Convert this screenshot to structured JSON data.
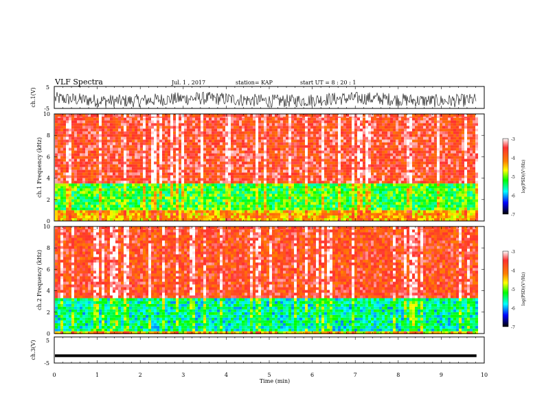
{
  "header": {
    "title": "VLF Spectra",
    "date": "Jul. 1 , 2017",
    "station": "station= KAP",
    "start": "start UT = 8 : 20 : 1"
  },
  "chart_data": [
    {
      "type": "line",
      "id": "ch1-waveform",
      "ylabel": "ch.1(V)",
      "ylim": [
        -5,
        5
      ],
      "yticks": [
        "5",
        "-5"
      ],
      "xlim": [
        0,
        10
      ],
      "description_of_signal": "noisy waveform roughly within -4 to 4 V, centered near -1 V"
    },
    {
      "type": "heatmap",
      "id": "ch1-spectrogram",
      "ylabel": "ch.1 Frequency (kHz)",
      "ylim": [
        0,
        10
      ],
      "yticks": [
        "0",
        "2",
        "4",
        "6",
        "8",
        "10"
      ],
      "xlim": [
        0,
        10
      ],
      "colorbar": {
        "label": "log(PSD)(V²/Hz)",
        "ticks": [
          "-3",
          "-4",
          "-5",
          "-6",
          "-7"
        ],
        "range": [
          -7,
          -3
        ]
      },
      "bands": [
        {
          "f_low": 3.5,
          "f_high": 10,
          "level": -3.6
        },
        {
          "f_low": 1.0,
          "f_high": 3.5,
          "level": -5.2
        },
        {
          "f_low": 0.0,
          "f_high": 1.0,
          "level": -4.4
        }
      ]
    },
    {
      "type": "heatmap",
      "id": "ch2-spectrogram",
      "ylabel": "ch.2 Frequency (kHz)",
      "ylim": [
        0,
        10
      ],
      "yticks": [
        "0",
        "2",
        "4",
        "6",
        "8",
        "10"
      ],
      "xlim": [
        0,
        10
      ],
      "colorbar": {
        "label": "log(PSD)(V²/Hz)",
        "ticks": [
          "-3",
          "-4",
          "-5",
          "-6",
          "-7"
        ],
        "range": [
          -7,
          -3
        ]
      },
      "bands": [
        {
          "f_low": 3.3,
          "f_high": 10,
          "level": -3.7
        },
        {
          "f_low": 0.2,
          "f_high": 3.3,
          "level": -5.6
        },
        {
          "f_low": 0.0,
          "f_high": 0.2,
          "level": -4.5
        }
      ]
    },
    {
      "type": "line",
      "id": "ch3-waveform",
      "ylabel": "ch.3(V)",
      "ylim": [
        -5,
        5
      ],
      "yticks": [
        "5",
        "-5"
      ],
      "xlim": [
        0,
        10
      ],
      "constant_value": -2.2
    }
  ],
  "xaxis": {
    "label": "Time (min)",
    "ticks": [
      "0",
      "1",
      "2",
      "3",
      "4",
      "5",
      "6",
      "7",
      "8",
      "9",
      "10"
    ],
    "data_end": 9.82
  }
}
